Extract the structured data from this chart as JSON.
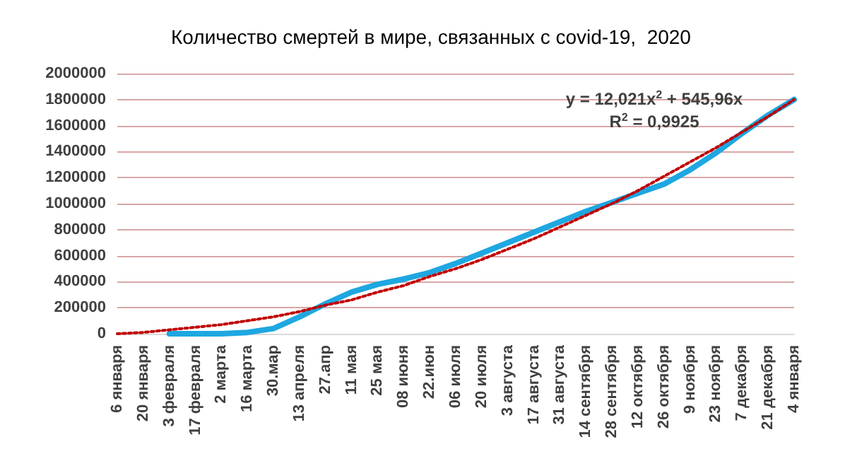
{
  "chart_data": {
    "type": "line",
    "title": "Количество смертей в мире, связанных с covid-19,  2020",
    "categories": [
      "6 января",
      "20 января",
      "3 февраля",
      "17 февраля",
      "2 марта",
      "16 марта",
      "30.мар",
      "13 апреля",
      "27.апр",
      "11 мая",
      "25 мая",
      "08 июня",
      "22.июн",
      "06 июля",
      "20 июля",
      "3 августа",
      "17 августа",
      "31 августа",
      "14 сентября",
      "28 сентября",
      "12 октября",
      "26 октября",
      "9 ноября",
      "23 ноября",
      "7 декабря",
      "21 декабря",
      "4 января"
    ],
    "series": [
      {
        "color": "#1ea7e1",
        "line_style": "solid",
        "values": [
          null,
          null,
          0,
          0,
          0,
          10000,
          40000,
          130000,
          230000,
          320000,
          380000,
          420000,
          470000,
          540000,
          620000,
          700000,
          780000,
          860000,
          940000,
          1010000,
          1080000,
          1150000,
          1260000,
          1390000,
          1540000,
          1680000,
          1800000
        ]
      },
      {
        "color": "#c00000",
        "line_style": "dotted",
        "values": [
          0,
          10000,
          30000,
          50000,
          70000,
          100000,
          130000,
          170000,
          220000,
          260000,
          320000,
          370000,
          440000,
          500000,
          570000,
          650000,
          730000,
          820000,
          910000,
          1000000,
          1100000,
          1210000,
          1320000,
          1430000,
          1550000,
          1670000,
          1800000
        ]
      }
    ],
    "ylim": [
      0,
      2000000
    ],
    "yticks": [
      0,
      200000,
      400000,
      600000,
      800000,
      1000000,
      1200000,
      1400000,
      1600000,
      1800000,
      2000000
    ],
    "grid": "y",
    "marker": "none",
    "annotations": [
      "y = 12,021x$^{2}$ + 545,96x",
      "R$^{2}$ = 0,9925"
    ]
  }
}
